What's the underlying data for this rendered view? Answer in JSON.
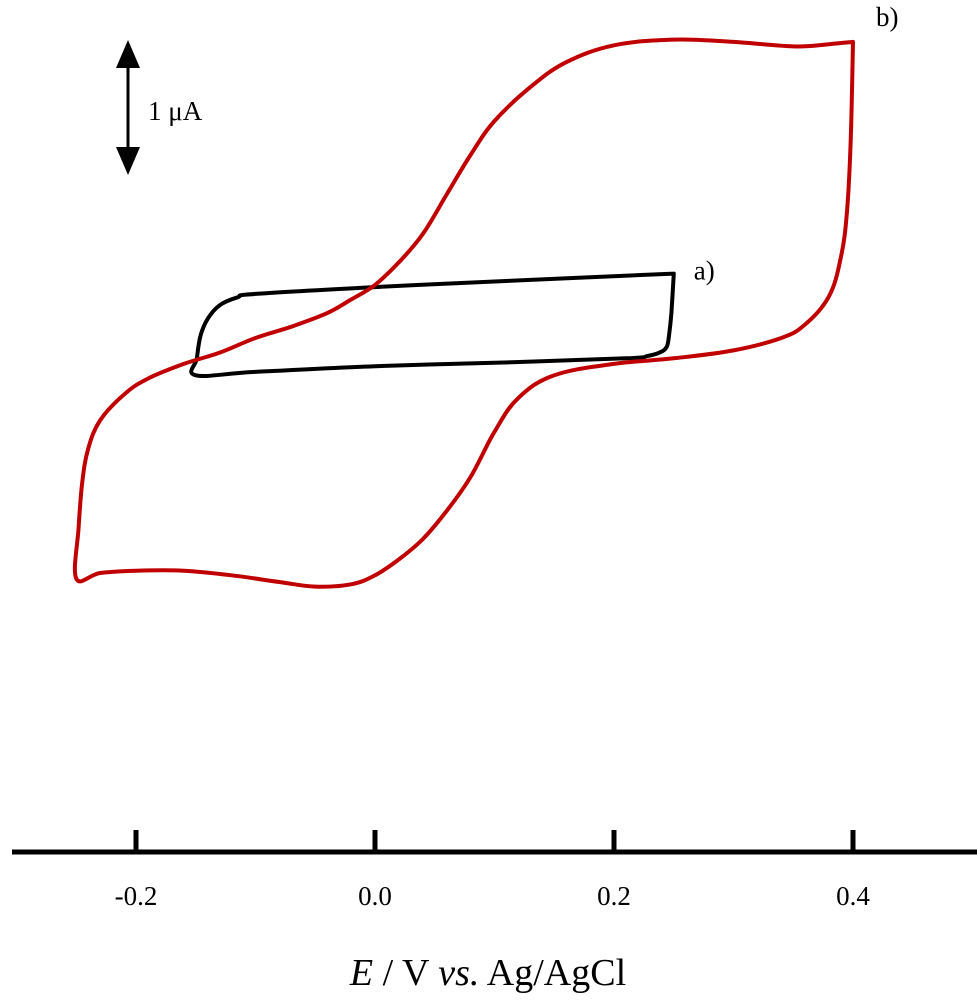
{
  "chart_data": {
    "type": "line",
    "x_axis": {
      "label_parts": [
        {
          "text": "E",
          "italic": true
        },
        {
          "text": " / V ",
          "italic": false
        },
        {
          "text": "vs.",
          "italic": true
        },
        {
          "text": " Ag/AgCl",
          "italic": false
        }
      ],
      "ticks": [
        -0.2,
        0.0,
        0.2,
        0.4
      ],
      "tick_labels": [
        "-0.2",
        "0.0",
        "0.2",
        "0.4"
      ],
      "range": [
        -0.3,
        0.5
      ]
    },
    "y_axis": {
      "scale_bar_value": 1,
      "scale_bar_label": "1 μA",
      "range": [
        -3.0,
        3.9
      ]
    },
    "grid": false,
    "series": [
      {
        "name": "a)",
        "color": "#000000",
        "points": [
          [
            0.25,
            0.65
          ],
          [
            0.248,
            0.3
          ],
          [
            0.246,
            0.1
          ],
          [
            0.244,
            0.0
          ],
          [
            0.238,
            -0.05
          ],
          [
            0.228,
            -0.08
          ],
          [
            0.21,
            -0.1
          ],
          [
            0.1,
            -0.14
          ],
          [
            0.0,
            -0.17
          ],
          [
            -0.1,
            -0.22
          ],
          [
            -0.15,
            -0.25
          ],
          [
            -0.149,
            -0.1
          ],
          [
            -0.146,
            0.1
          ],
          [
            -0.14,
            0.25
          ],
          [
            -0.13,
            0.37
          ],
          [
            -0.115,
            0.44
          ],
          [
            -0.1,
            0.47
          ],
          [
            0.0,
            0.53
          ],
          [
            0.1,
            0.58
          ],
          [
            0.25,
            0.65
          ]
        ]
      },
      {
        "name": "b)",
        "color": "#c00000",
        "points": [
          [
            0.4,
            2.7
          ],
          [
            0.398,
            1.8
          ],
          [
            0.395,
            1.2
          ],
          [
            0.39,
            0.8
          ],
          [
            0.38,
            0.45
          ],
          [
            0.36,
            0.2
          ],
          [
            0.34,
            0.08
          ],
          [
            0.3,
            -0.03
          ],
          [
            0.25,
            -0.1
          ],
          [
            0.2,
            -0.15
          ],
          [
            0.15,
            -0.25
          ],
          [
            0.12,
            -0.45
          ],
          [
            0.1,
            -0.75
          ],
          [
            0.08,
            -1.15
          ],
          [
            0.06,
            -1.45
          ],
          [
            0.04,
            -1.7
          ],
          [
            0.02,
            -1.88
          ],
          [
            0.0,
            -2.02
          ],
          [
            -0.02,
            -2.1
          ],
          [
            -0.05,
            -2.12
          ],
          [
            -0.08,
            -2.08
          ],
          [
            -0.12,
            -2.02
          ],
          [
            -0.16,
            -1.98
          ],
          [
            -0.2,
            -1.98
          ],
          [
            -0.23,
            -2.0
          ],
          [
            -0.25,
            -2.05
          ],
          [
            -0.248,
            -1.6
          ],
          [
            -0.245,
            -1.2
          ],
          [
            -0.24,
            -0.9
          ],
          [
            -0.23,
            -0.65
          ],
          [
            -0.21,
            -0.42
          ],
          [
            -0.19,
            -0.28
          ],
          [
            -0.16,
            -0.15
          ],
          [
            -0.13,
            -0.05
          ],
          [
            -0.1,
            0.08
          ],
          [
            -0.07,
            0.18
          ],
          [
            -0.04,
            0.3
          ],
          [
            -0.02,
            0.42
          ],
          [
            0.0,
            0.55
          ],
          [
            0.02,
            0.75
          ],
          [
            0.04,
            1.0
          ],
          [
            0.06,
            1.35
          ],
          [
            0.08,
            1.7
          ],
          [
            0.1,
            2.0
          ],
          [
            0.13,
            2.3
          ],
          [
            0.16,
            2.52
          ],
          [
            0.2,
            2.67
          ],
          [
            0.25,
            2.72
          ],
          [
            0.3,
            2.7
          ],
          [
            0.35,
            2.66
          ],
          [
            0.38,
            2.68
          ],
          [
            0.4,
            2.7
          ]
        ]
      }
    ]
  }
}
